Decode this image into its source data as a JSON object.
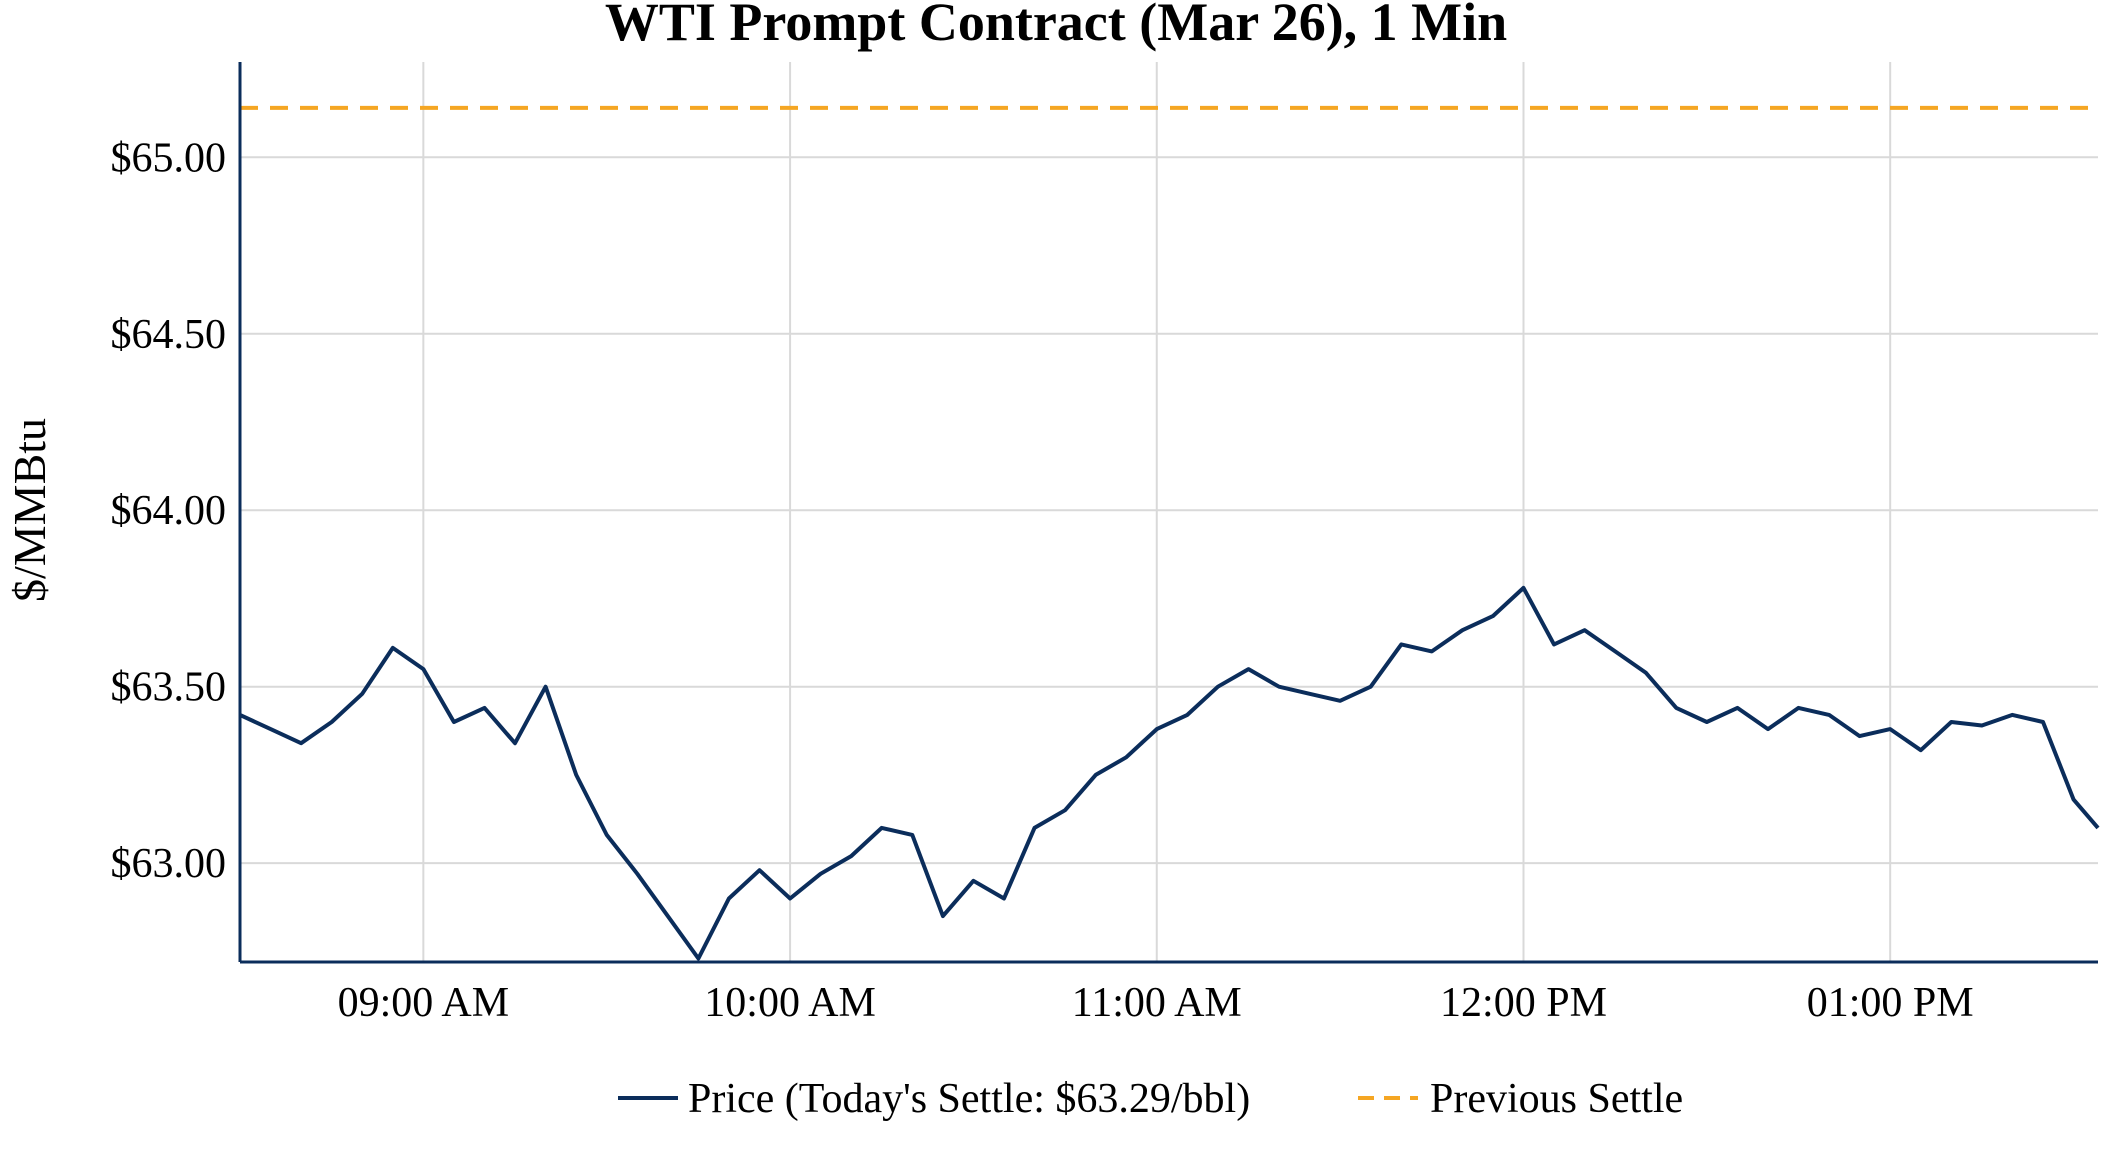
{
  "chart_data": {
    "type": "line",
    "title": "WTI Prompt Contract (Mar 26), 1 Min",
    "ylabel": "$/MMBtu",
    "xlabel": "",
    "grid": true,
    "legend_placement": "bottom-center",
    "x_start": "08:30",
    "x_end": "13:34",
    "xticks": [
      "09:00",
      "10:00",
      "11:00",
      "12:00",
      "13:00"
    ],
    "xtick_labels": [
      "09:00 AM",
      "10:00 AM",
      "11:00 AM",
      "12:00 PM",
      "01:00 PM"
    ],
    "ylim": [
      62.72,
      65.27
    ],
    "yticks": [
      63.0,
      63.5,
      64.0,
      64.5,
      65.0
    ],
    "ytick_labels": [
      "$63.00",
      "$63.50",
      "$64.00",
      "$64.50",
      "$65.00"
    ],
    "series": [
      {
        "name": "Price (Today's Settle: $63.29/bbl)",
        "color": "#0b2d5b",
        "style": "solid",
        "x": [
          "08:30",
          "08:35",
          "08:40",
          "08:45",
          "08:50",
          "08:55",
          "09:00",
          "09:05",
          "09:10",
          "09:15",
          "09:20",
          "09:25",
          "09:30",
          "09:35",
          "09:40",
          "09:45",
          "09:50",
          "09:55",
          "10:00",
          "10:05",
          "10:10",
          "10:15",
          "10:20",
          "10:25",
          "10:30",
          "10:35",
          "10:40",
          "10:45",
          "10:50",
          "10:55",
          "11:00",
          "11:05",
          "11:10",
          "11:15",
          "11:20",
          "11:25",
          "11:30",
          "11:35",
          "11:40",
          "11:45",
          "11:50",
          "11:55",
          "12:00",
          "12:05",
          "12:10",
          "12:15",
          "12:20",
          "12:25",
          "12:30",
          "12:35",
          "12:40",
          "12:45",
          "12:50",
          "12:55",
          "13:00",
          "13:05",
          "13:10",
          "13:15",
          "13:20",
          "13:25",
          "13:30",
          "13:34"
        ],
        "values": [
          63.42,
          63.38,
          63.34,
          63.4,
          63.48,
          63.61,
          63.55,
          63.4,
          63.44,
          63.34,
          63.5,
          63.25,
          63.08,
          62.97,
          62.85,
          62.73,
          62.9,
          62.98,
          62.9,
          62.97,
          63.02,
          63.1,
          63.08,
          62.85,
          62.95,
          62.9,
          63.1,
          63.15,
          63.25,
          63.3,
          63.38,
          63.42,
          63.5,
          63.55,
          63.5,
          63.48,
          63.46,
          63.5,
          63.62,
          63.6,
          63.66,
          63.7,
          63.78,
          63.62,
          63.66,
          63.6,
          63.54,
          63.44,
          63.4,
          63.44,
          63.38,
          63.44,
          63.42,
          63.36,
          63.38,
          63.32,
          63.4,
          63.39,
          63.42,
          63.4,
          63.18,
          63.1
        ]
      },
      {
        "name": "Previous Settle",
        "color": "#f5a623",
        "style": "dashed",
        "value": 65.14
      }
    ]
  }
}
